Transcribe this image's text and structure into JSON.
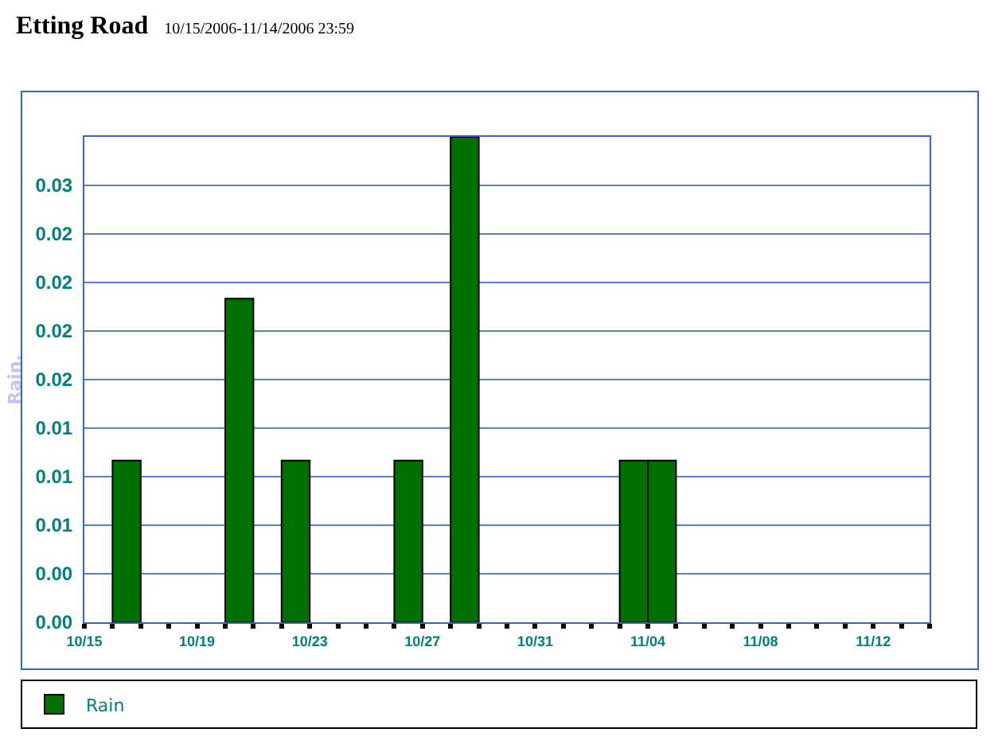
{
  "chart_data": {
    "type": "bar",
    "title": "Etting Road",
    "subtitle": "10/15/2006-11/14/2006 23:59",
    "ylabel": "Rain.",
    "x": [
      "2006-10-16T12:00",
      "2006-10-20T12:00",
      "2006-10-22T12:00",
      "2006-10-26T12:00",
      "2006-10-28T12:00",
      "2006-11-03T12:00",
      "2006-11-04T12:00"
    ],
    "series": [
      {
        "name": "Rain",
        "color": "#007000",
        "values": [
          0.01,
          0.02,
          0.01,
          0.01,
          0.03,
          0.01,
          0.01
        ]
      }
    ],
    "xlim": [
      "2006-10-15",
      "2006-11-14"
    ],
    "xticks": [
      {
        "value": "2006-10-15",
        "label": "10/15"
      },
      {
        "value": "2006-10-16",
        "label": null
      },
      {
        "value": "2006-10-17",
        "label": null
      },
      {
        "value": "2006-10-18",
        "label": null
      },
      {
        "value": "2006-10-19",
        "label": "10/19"
      },
      {
        "value": "2006-10-20",
        "label": null
      },
      {
        "value": "2006-10-21",
        "label": null
      },
      {
        "value": "2006-10-22",
        "label": null
      },
      {
        "value": "2006-10-23",
        "label": "10/23"
      },
      {
        "value": "2006-10-24",
        "label": null
      },
      {
        "value": "2006-10-25",
        "label": null
      },
      {
        "value": "2006-10-26",
        "label": null
      },
      {
        "value": "2006-10-27",
        "label": "10/27"
      },
      {
        "value": "2006-10-28",
        "label": null
      },
      {
        "value": "2006-10-29",
        "label": null
      },
      {
        "value": "2006-10-30",
        "label": null
      },
      {
        "value": "2006-10-31",
        "label": "10/31"
      },
      {
        "value": "2006-11-01",
        "label": null
      },
      {
        "value": "2006-11-02",
        "label": null
      },
      {
        "value": "2006-11-03",
        "label": null
      },
      {
        "value": "2006-11-04",
        "label": "11/04"
      },
      {
        "value": "2006-11-05",
        "label": null
      },
      {
        "value": "2006-11-06",
        "label": null
      },
      {
        "value": "2006-11-07",
        "label": null
      },
      {
        "value": "2006-11-08",
        "label": "11/08"
      },
      {
        "value": "2006-11-09",
        "label": null
      },
      {
        "value": "2006-11-10",
        "label": null
      },
      {
        "value": "2006-11-11",
        "label": null
      },
      {
        "value": "2006-11-12",
        "label": "11/12"
      },
      {
        "value": "2006-11-13",
        "label": null
      },
      {
        "value": "2006-11-14",
        "label": null
      }
    ],
    "ylim": [
      0,
      0.03
    ],
    "yticks": [
      {
        "value": 0,
        "label": "0.00"
      },
      {
        "value": 0.003,
        "label": "0.00"
      },
      {
        "value": 0.006,
        "label": "0.01"
      },
      {
        "value": 0.009,
        "label": "0.01"
      },
      {
        "value": 0.012,
        "label": "0.01"
      },
      {
        "value": 0.015,
        "label": "0.02"
      },
      {
        "value": 0.018,
        "label": "0.02"
      },
      {
        "value": 0.021,
        "label": "0.02"
      },
      {
        "value": 0.024,
        "label": "0.02"
      },
      {
        "value": 0.027,
        "label": "0.03"
      },
      {
        "value": 0.03,
        "label": null
      }
    ],
    "grid": "y",
    "legend": "bottom"
  }
}
